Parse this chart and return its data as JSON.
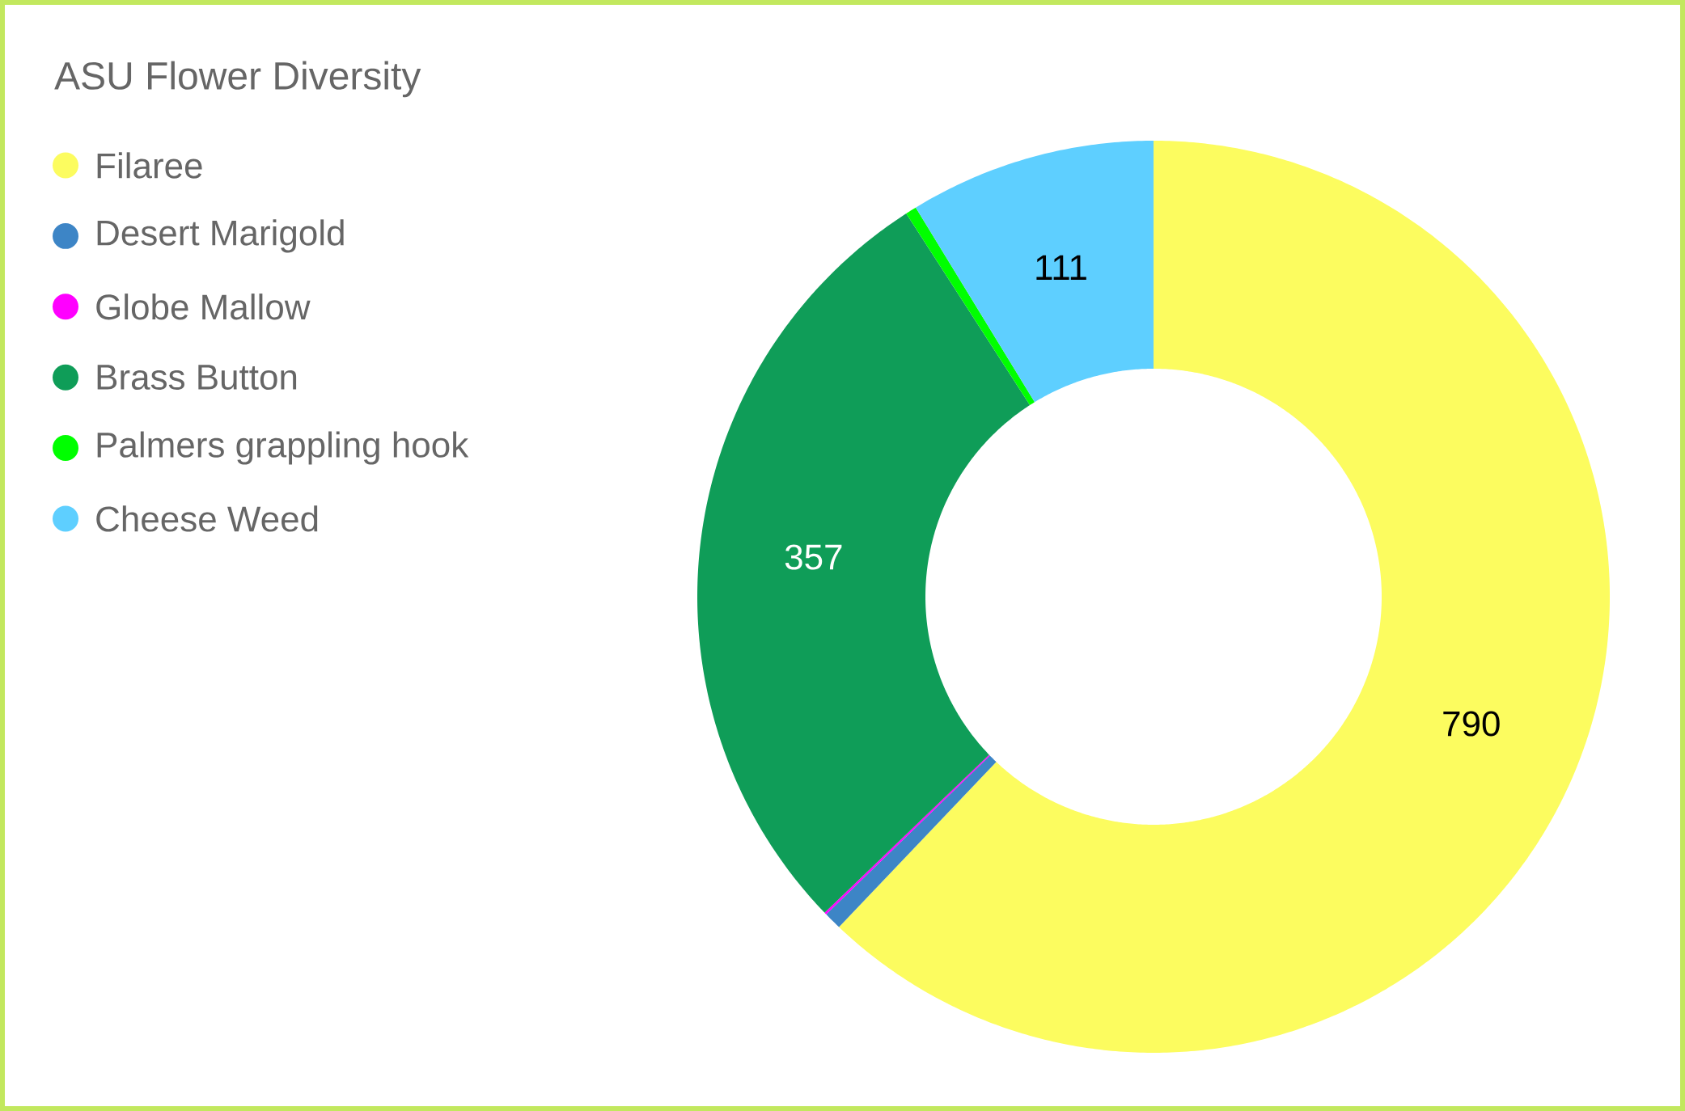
{
  "chart_data": {
    "type": "donut",
    "title": "ASU Flower Diversity",
    "categories": [
      "Filaree",
      "Desert Marigold",
      "Globe Mallow",
      "Brass Button",
      "Palmers grappling hook",
      "Cheese Weed"
    ],
    "values": [
      790,
      8,
      1,
      357,
      5,
      111
    ],
    "colors": [
      "#fcfc5f",
      "#3d85c6",
      "#ff00ff",
      "#0f9d58",
      "#00ff00",
      "#5ecfff"
    ],
    "value_labels": [
      "790",
      null,
      null,
      "357",
      null,
      "111"
    ],
    "legend": "top left"
  }
}
